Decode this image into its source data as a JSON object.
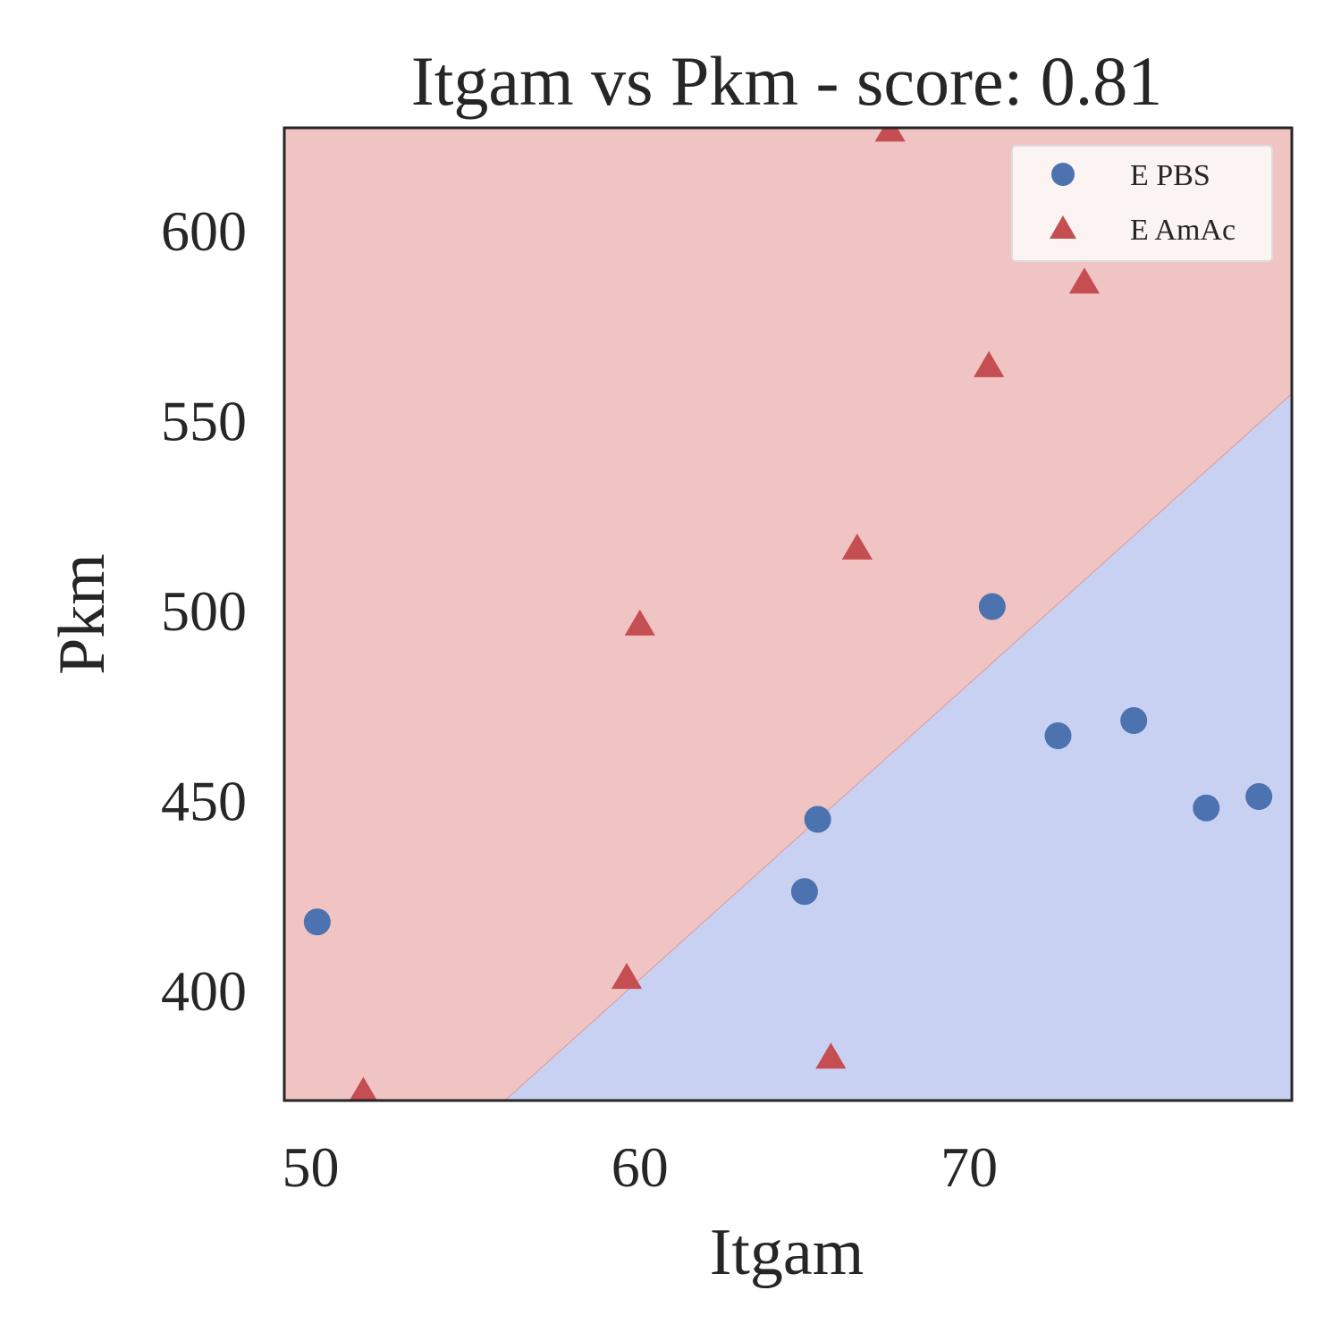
{
  "chart_data": {
    "type": "scatter",
    "title": "Itgam vs Pkm - score: 0.81",
    "xlabel": "Itgam",
    "ylabel": "Pkm",
    "xlim": [
      49.2,
      79.8
    ],
    "ylim": [
      371,
      627
    ],
    "xticks": [
      50,
      60,
      70
    ],
    "yticks": [
      400,
      450,
      500,
      550,
      600
    ],
    "grid": false,
    "legend_position": "top-right",
    "decision_boundary": {
      "x": [
        55.9,
        79.8
      ],
      "y": [
        371,
        557
      ],
      "region_above_color": "#efc4c2",
      "region_below_color": "#c9d1f2",
      "region_above_class": "E AmAc",
      "region_below_class": "E PBS"
    },
    "series": [
      {
        "name": "E PBS",
        "marker": "circle",
        "color": "#4c72b0",
        "points": [
          {
            "x": 50.2,
            "y": 418
          },
          {
            "x": 65.0,
            "y": 426
          },
          {
            "x": 65.4,
            "y": 445
          },
          {
            "x": 70.7,
            "y": 501
          },
          {
            "x": 72.7,
            "y": 467
          },
          {
            "x": 75.0,
            "y": 471
          },
          {
            "x": 77.2,
            "y": 448
          },
          {
            "x": 78.8,
            "y": 451
          }
        ]
      },
      {
        "name": "E AmAc",
        "marker": "triangle",
        "color": "#c44e52",
        "points": [
          {
            "x": 51.6,
            "y": 373
          },
          {
            "x": 59.6,
            "y": 403
          },
          {
            "x": 60.0,
            "y": 496
          },
          {
            "x": 65.8,
            "y": 382
          },
          {
            "x": 66.6,
            "y": 516
          },
          {
            "x": 67.6,
            "y": 626
          },
          {
            "x": 70.6,
            "y": 564
          },
          {
            "x": 73.5,
            "y": 586
          }
        ]
      }
    ]
  }
}
